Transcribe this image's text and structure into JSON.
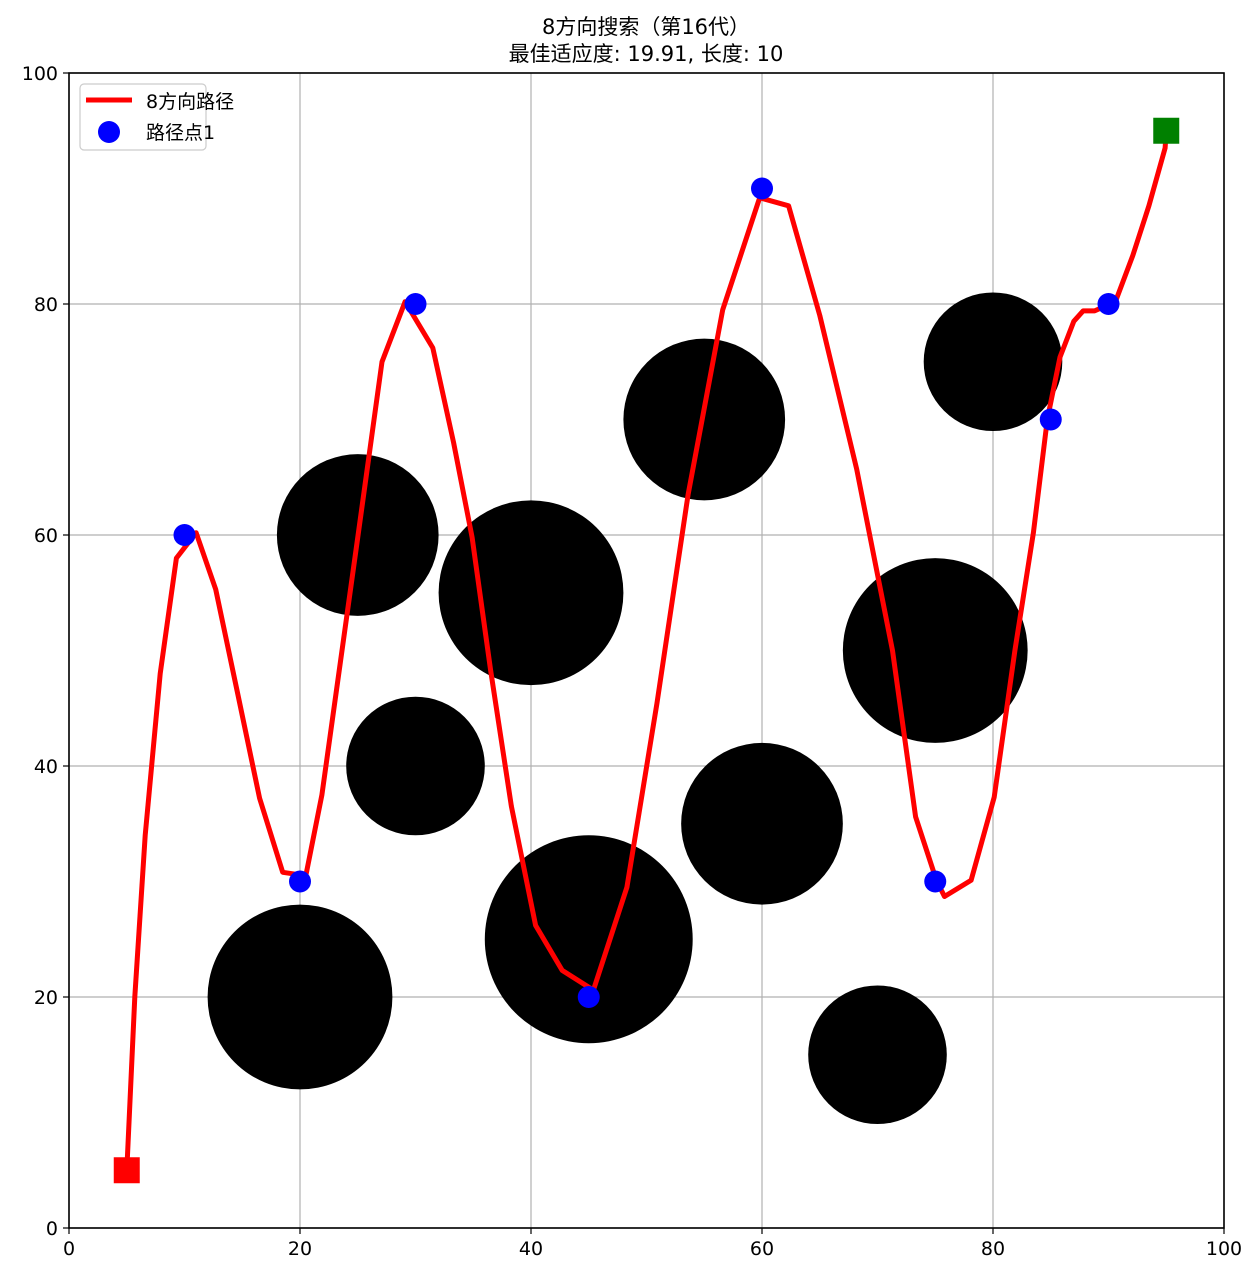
{
  "chart_data": {
    "type": "scatter",
    "title_line1": "8方向搜索（第16代）",
    "title_line2": "最佳适应度: 19.91, 长度: 10",
    "xlabel": "",
    "ylabel": "",
    "xlim": [
      0,
      100
    ],
    "ylim": [
      0,
      100
    ],
    "grid": true,
    "x_ticks": [
      "0",
      "20",
      "40",
      "60",
      "80",
      "100"
    ],
    "y_ticks": [
      "0",
      "20",
      "40",
      "60",
      "80",
      "100"
    ],
    "legend": {
      "placement": "top-left",
      "entries": [
        {
          "label": "8方向路径",
          "kind": "line",
          "color": "#ff0000"
        },
        {
          "label": "路径点1",
          "kind": "marker",
          "color": "#0000ff"
        }
      ]
    },
    "obstacles": [
      {
        "x": 20,
        "y": 20,
        "r": 8
      },
      {
        "x": 30,
        "y": 40,
        "r": 6
      },
      {
        "x": 25,
        "y": 60,
        "r": 7
      },
      {
        "x": 40,
        "y": 55,
        "r": 8
      },
      {
        "x": 45,
        "y": 25,
        "r": 9
      },
      {
        "x": 55,
        "y": 70,
        "r": 7
      },
      {
        "x": 60,
        "y": 35,
        "r": 7
      },
      {
        "x": 70,
        "y": 15,
        "r": 6
      },
      {
        "x": 75,
        "y": 50,
        "r": 8
      },
      {
        "x": 80,
        "y": 75,
        "r": 6
      }
    ],
    "obstacle_color": "#000000",
    "start": {
      "x": 5,
      "y": 5,
      "color": "#ff0000"
    },
    "goal": {
      "x": 95,
      "y": 95,
      "color": "#008000"
    },
    "path_color": "#ff0000",
    "waypoint_color": "#0000ff",
    "waypoints": [
      {
        "x": 10,
        "y": 60
      },
      {
        "x": 20,
        "y": 30
      },
      {
        "x": 30,
        "y": 80
      },
      {
        "x": 45,
        "y": 20
      },
      {
        "x": 60,
        "y": 90
      },
      {
        "x": 75,
        "y": 30
      },
      {
        "x": 85,
        "y": 70
      },
      {
        "x": 90,
        "y": 80
      }
    ],
    "path": [
      [
        5,
        5
      ],
      [
        5.7,
        20
      ],
      [
        6.6,
        34
      ],
      [
        7.9,
        48
      ],
      [
        9.3,
        58
      ],
      [
        11,
        60.2
      ],
      [
        12.7,
        55.3
      ],
      [
        14.6,
        46.3
      ],
      [
        16.5,
        37.2
      ],
      [
        18.5,
        30.8
      ],
      [
        20.5,
        30.5
      ],
      [
        21.9,
        37.5
      ],
      [
        23.5,
        49
      ],
      [
        25.1,
        60.5
      ],
      [
        27.1,
        75
      ],
      [
        29.1,
        80.2
      ],
      [
        31.5,
        76.2
      ],
      [
        33.3,
        68
      ],
      [
        34.9,
        59.8
      ],
      [
        36.5,
        48.3
      ],
      [
        38.3,
        36.5
      ],
      [
        40.4,
        26.2
      ],
      [
        42.7,
        22.3
      ],
      [
        45.4,
        20.6
      ],
      [
        48.3,
        29.5
      ],
      [
        50.9,
        45.4
      ],
      [
        53.6,
        63.5
      ],
      [
        56.6,
        79.5
      ],
      [
        59.8,
        89.2
      ],
      [
        62.3,
        88.5
      ],
      [
        65,
        79
      ],
      [
        68.2,
        65.7
      ],
      [
        71.3,
        50
      ],
      [
        73.3,
        35.6
      ],
      [
        75.1,
        30.1
      ],
      [
        75.8,
        28.7
      ],
      [
        78.1,
        30.1
      ],
      [
        80.1,
        37.3
      ],
      [
        81.9,
        50
      ],
      [
        83.5,
        60.2
      ],
      [
        84.7,
        70
      ],
      [
        85.8,
        75.4
      ],
      [
        87,
        78.5
      ],
      [
        87.8,
        79.4
      ],
      [
        88.8,
        79.4
      ],
      [
        90.6,
        80.2
      ],
      [
        92.1,
        84.2
      ],
      [
        93.5,
        88.5
      ],
      [
        94.9,
        93.5
      ],
      [
        95,
        95
      ]
    ]
  }
}
